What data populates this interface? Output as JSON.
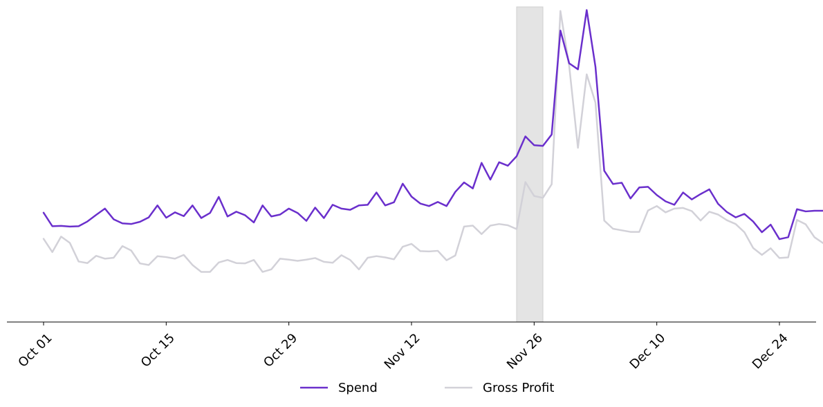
{
  "chart_data": {
    "type": "line",
    "title": "",
    "xlabel": "",
    "ylabel": "",
    "x_start": "2023-10-01",
    "x_end": "2023-12-24",
    "x_ticks": [
      "Oct 01",
      "Oct 15",
      "Oct 29",
      "Nov 12",
      "Nov 26",
      "Dec 10",
      "Dec 24"
    ],
    "ylim": [
      0,
      100
    ],
    "y_axis_visible": false,
    "grid": false,
    "legend_position": "bottom-center",
    "highlight_band": {
      "start": "2023-11-24",
      "end": "2023-11-27",
      "color": "#e4e4e4"
    },
    "series": [
      {
        "name": "Spend",
        "color": "#6a2fcc",
        "values": [
          34.7,
          30.4,
          30.5,
          30.3,
          30.4,
          31.9,
          34.0,
          36.0,
          32.6,
          31.3,
          31.1,
          31.8,
          33.2,
          37.0,
          33.1,
          34.8,
          33.6,
          37.0,
          33.0,
          34.6,
          39.7,
          33.5,
          35.0,
          33.9,
          31.6,
          37.0,
          33.5,
          34.1,
          36.0,
          34.6,
          32.1,
          36.3,
          33.0,
          37.2,
          36.0,
          35.6,
          37.0,
          37.2,
          41.1,
          37.0,
          38.0,
          43.9,
          39.8,
          37.6,
          36.8,
          38.1,
          36.8,
          41.3,
          44.3,
          42.4,
          50.5,
          45.2,
          50.7,
          49.6,
          52.6,
          58.9,
          56.1,
          55.9,
          59.5,
          92.5,
          82.1,
          80.2,
          99.0,
          81.0,
          48.0,
          43.8,
          44.2,
          39.2,
          42.7,
          42.9,
          40.3,
          38.3,
          37.2,
          41.1,
          38.9,
          40.6,
          42.1,
          37.5,
          34.9,
          33.2,
          34.3,
          31.9,
          28.5,
          30.9,
          26.3,
          26.9,
          35.8,
          35.1,
          35.3,
          35.3,
          35.7,
          34.7
        ]
      },
      {
        "name": "Gross Profit",
        "color": "#d2d1d8",
        "values": [
          26.4,
          22.2,
          27.1,
          25.1,
          19.2,
          18.7,
          21.0,
          20.1,
          20.4,
          24.1,
          22.7,
          18.6,
          18.1,
          20.9,
          20.6,
          20.1,
          21.3,
          18.1,
          15.9,
          15.9,
          18.9,
          19.7,
          18.7,
          18.6,
          19.7,
          15.9,
          16.7,
          20.1,
          19.8,
          19.4,
          19.8,
          20.3,
          19.1,
          18.8,
          21.2,
          19.7,
          16.7,
          20.4,
          20.9,
          20.5,
          19.9,
          23.9,
          24.8,
          22.5,
          22.4,
          22.6,
          19.6,
          21.1,
          30.3,
          30.6,
          27.9,
          30.6,
          31.1,
          30.7,
          29.5,
          44.4,
          40.0,
          39.4,
          43.7,
          98.7,
          81.3,
          55.3,
          78.6,
          69.6,
          32.2,
          29.6,
          29.1,
          28.6,
          28.6,
          35.4,
          36.8,
          34.8,
          36.0,
          36.2,
          35.2,
          32.2,
          35.0,
          34.1,
          32.3,
          31.1,
          28.5,
          23.5,
          21.3,
          23.4,
          20.3,
          20.5,
          32.4,
          31.0,
          26.9,
          25.0,
          25.8,
          30.3
        ]
      }
    ]
  }
}
